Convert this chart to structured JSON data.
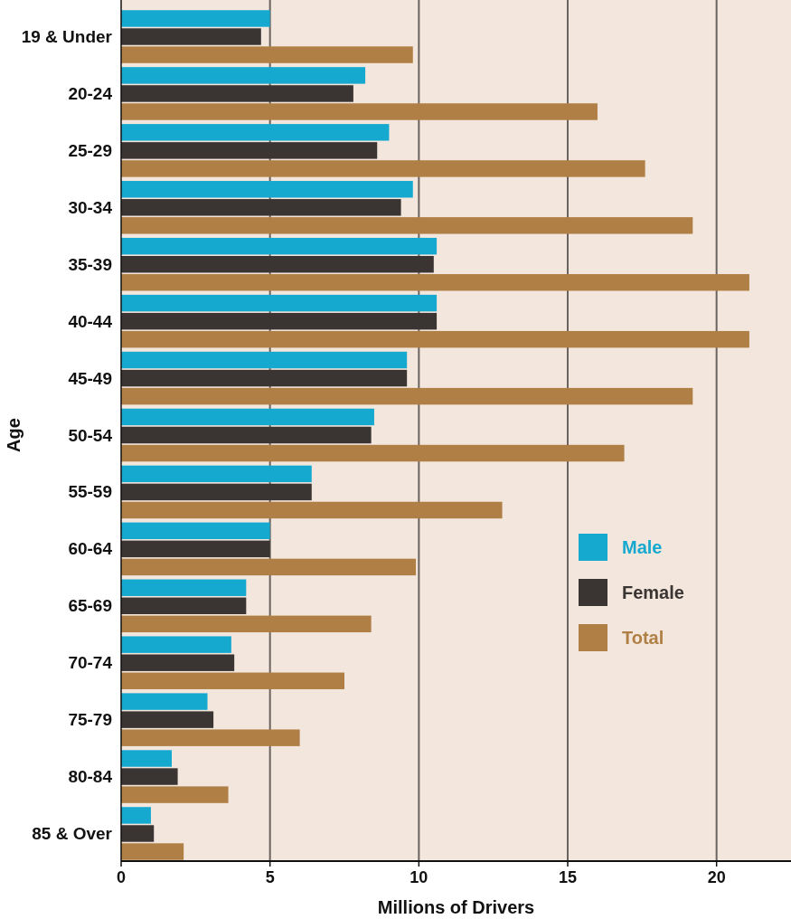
{
  "chart_data": {
    "type": "bar",
    "orientation": "horizontal",
    "xlabel": "Millions of Drivers",
    "ylabel": "Age",
    "categories": [
      "19 & Under",
      "20-24",
      "25-29",
      "30-34",
      "35-39",
      "40-44",
      "45-49",
      "50-54",
      "55-59",
      "60-64",
      "65-69",
      "70-74",
      "75-79",
      "80-84",
      "85 & Over"
    ],
    "series": [
      {
        "name": "Male",
        "color": "#16a9d0",
        "values": [
          5.0,
          8.2,
          9.0,
          9.8,
          10.6,
          10.6,
          9.6,
          8.5,
          6.4,
          5.0,
          4.2,
          3.7,
          2.9,
          1.7,
          1.0
        ]
      },
      {
        "name": "Female",
        "color": "#3a3532",
        "values": [
          4.7,
          7.8,
          8.6,
          9.4,
          10.5,
          10.6,
          9.6,
          8.4,
          6.4,
          5.0,
          4.2,
          3.8,
          3.1,
          1.9,
          1.1
        ]
      },
      {
        "name": "Total",
        "color": "#b07f45",
        "values": [
          9.8,
          16.0,
          17.6,
          19.2,
          21.1,
          21.1,
          19.2,
          16.9,
          12.8,
          9.9,
          8.4,
          7.5,
          6.0,
          3.6,
          2.1
        ]
      }
    ],
    "xlim": [
      0,
      22.5
    ],
    "xticks": [
      0,
      5,
      10,
      15,
      20
    ],
    "grid": "x",
    "legend": "right"
  }
}
